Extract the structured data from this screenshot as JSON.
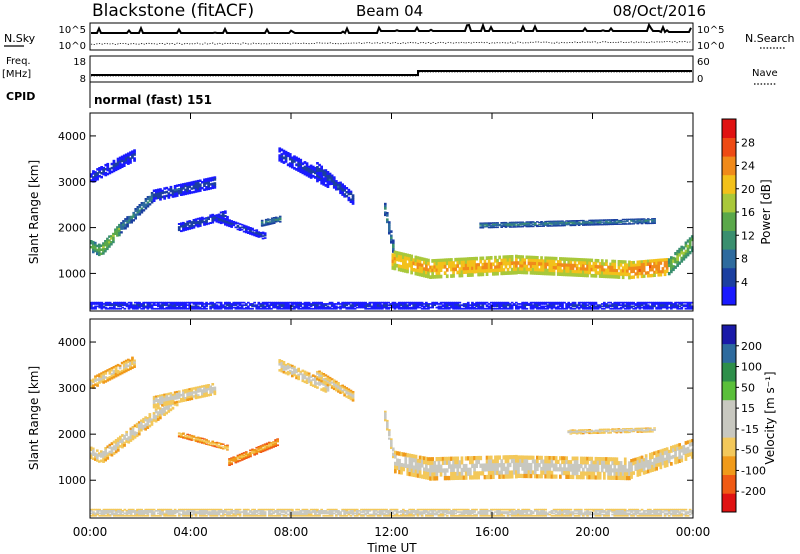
{
  "header": {
    "station": "Blackstone (fitACF)",
    "beam": "Beam 04",
    "date": "08/Oct/2016"
  },
  "panels": {
    "noise": {
      "left_label": "N.Sky",
      "right_label": "N.Search",
      "left_ticks": [
        "10^5",
        "10^0"
      ],
      "right_ticks": [
        "10^5",
        "10^0"
      ]
    },
    "freq": {
      "left_label_1": "Freq.",
      "left_label_2": "[MHz]",
      "right_label": "Nave",
      "left_ticks": [
        "18",
        "8"
      ],
      "right_ticks": [
        "60",
        "0"
      ]
    },
    "cpid": {
      "left_label": "CPID",
      "text": "normal (fast) 151"
    }
  },
  "colors": {
    "power_scale": [
      "#1a1aff",
      "#1b3fa0",
      "#2e6b9e",
      "#3a8f6f",
      "#5aa84a",
      "#a9c83a",
      "#f3c11a",
      "#f08a1a",
      "#ee4a14",
      "#e01212"
    ],
    "velocity_scale": [
      "#e01212",
      "#f05a14",
      "#f09a1a",
      "#f3c85a",
      "#c8c8c0",
      "#c8c8c0",
      "#5abf3a",
      "#2e8f4a",
      "#2e6b9e",
      "#1a1aa8"
    ]
  },
  "chart_data": [
    {
      "type": "heatmap",
      "title": "",
      "xlabel": "Time UT",
      "ylabel": "Slant Range [km]",
      "x_ticks": [
        "00:00",
        "04:00",
        "08:00",
        "12:00",
        "16:00",
        "20:00",
        "00:00"
      ],
      "xlim": [
        0,
        24
      ],
      "y_ticks": [
        "1000",
        "2000",
        "3000",
        "4000"
      ],
      "ylim": [
        180,
        4500
      ],
      "colorbar_label": "Power [dB]",
      "colorbar_ticks": [
        "4",
        "8",
        "12",
        "16",
        "20",
        "24",
        "28"
      ],
      "colorbar_range": [
        0,
        30
      ],
      "bands": [
        {
          "t0": 0.0,
          "t1": 0.4,
          "r0": 1600,
          "r1": 1500,
          "w": 260,
          "value": 14
        },
        {
          "t0": 0.4,
          "t1": 1.2,
          "r0": 1500,
          "r1": 2000,
          "w": 260,
          "value": 16
        },
        {
          "t0": 1.2,
          "t1": 2.5,
          "r0": 2000,
          "r1": 2700,
          "w": 240,
          "value": 10
        },
        {
          "t0": 0.0,
          "t1": 1.8,
          "r0": 3100,
          "r1": 3600,
          "w": 260,
          "value": 5
        },
        {
          "t0": 2.5,
          "t1": 5.0,
          "r0": 2700,
          "r1": 3000,
          "w": 260,
          "value": 6
        },
        {
          "t0": 3.5,
          "t1": 5.5,
          "r0": 2000,
          "r1": 2300,
          "w": 200,
          "value": 6
        },
        {
          "t0": 5.0,
          "t1": 7.0,
          "r0": 2200,
          "r1": 1800,
          "w": 160,
          "value": 5
        },
        {
          "t0": 6.8,
          "t1": 7.6,
          "r0": 2100,
          "r1": 2200,
          "w": 140,
          "value": 10
        },
        {
          "t0": 7.5,
          "t1": 9.5,
          "r0": 3600,
          "r1": 3000,
          "w": 300,
          "value": 5
        },
        {
          "t0": 9.0,
          "t1": 10.5,
          "r0": 3300,
          "r1": 2600,
          "w": 260,
          "value": 6
        },
        {
          "t0": 11.7,
          "t1": 12.1,
          "r0": 2400,
          "r1": 1400,
          "w": 280,
          "value": 10
        },
        {
          "t0": 12.0,
          "t1": 13.5,
          "r0": 1300,
          "r1": 1100,
          "w": 420,
          "value": 22
        },
        {
          "t0": 13.5,
          "t1": 17.0,
          "r0": 1100,
          "r1": 1200,
          "w": 420,
          "value": 22
        },
        {
          "t0": 17.0,
          "t1": 21.5,
          "r0": 1200,
          "r1": 1080,
          "w": 400,
          "value": 22
        },
        {
          "t0": 21.5,
          "t1": 23.0,
          "r0": 1080,
          "r1": 1150,
          "w": 380,
          "value": 24
        },
        {
          "t0": 23.0,
          "t1": 24.0,
          "r0": 1150,
          "r1": 1700,
          "w": 360,
          "value": 16
        },
        {
          "t0": 15.5,
          "t1": 22.5,
          "r0": 2050,
          "r1": 2150,
          "w": 120,
          "value": 10
        },
        {
          "t0": 0.0,
          "t1": 24.0,
          "r0": 300,
          "r1": 300,
          "w": 160,
          "value": 4
        }
      ]
    },
    {
      "type": "heatmap",
      "title": "",
      "xlabel": "Time UT",
      "ylabel": "Slant Range [km]",
      "x_ticks": [
        "00:00",
        "04:00",
        "08:00",
        "12:00",
        "16:00",
        "20:00",
        "00:00"
      ],
      "xlim": [
        0,
        24
      ],
      "y_ticks": [
        "1000",
        "2000",
        "3000",
        "4000"
      ],
      "ylim": [
        180,
        4500
      ],
      "colorbar_label": "Velocity [m s⁻¹]",
      "colorbar_ticks": [
        "-200",
        "-100",
        "-50",
        "-15",
        "15",
        "50",
        "100",
        "200"
      ],
      "colorbar_range": [
        -250,
        250
      ],
      "bands": [
        {
          "t0": 0.0,
          "t1": 0.4,
          "r0": 1600,
          "r1": 1500,
          "w": 260,
          "value": 0
        },
        {
          "t0": 0.4,
          "t1": 3.5,
          "r0": 1500,
          "r1": 2800,
          "w": 300,
          "value": 0
        },
        {
          "t0": 0.0,
          "t1": 1.8,
          "r0": 3100,
          "r1": 3600,
          "w": 260,
          "value": -30
        },
        {
          "t0": 2.5,
          "t1": 5.0,
          "r0": 2700,
          "r1": 3000,
          "w": 260,
          "value": 0
        },
        {
          "t0": 3.5,
          "t1": 5.5,
          "r0": 2000,
          "r1": 1700,
          "w": 120,
          "value": -60
        },
        {
          "t0": 5.5,
          "t1": 7.5,
          "r0": 1400,
          "r1": 1850,
          "w": 160,
          "value": -80
        },
        {
          "t0": 7.5,
          "t1": 9.5,
          "r0": 3500,
          "r1": 3000,
          "w": 260,
          "value": 0
        },
        {
          "t0": 9.0,
          "t1": 10.5,
          "r0": 3300,
          "r1": 2800,
          "w": 220,
          "value": -20
        },
        {
          "t0": 11.7,
          "t1": 12.1,
          "r0": 2400,
          "r1": 1400,
          "w": 220,
          "value": 30
        },
        {
          "t0": 12.1,
          "t1": 13.5,
          "r0": 1400,
          "r1": 1250,
          "w": 480,
          "value": 0
        },
        {
          "t0": 13.5,
          "t1": 17.0,
          "r0": 1250,
          "r1": 1300,
          "w": 500,
          "value": 0
        },
        {
          "t0": 17.0,
          "t1": 21.5,
          "r0": 1300,
          "r1": 1250,
          "w": 480,
          "value": 0
        },
        {
          "t0": 21.5,
          "t1": 24.0,
          "r0": 1250,
          "r1": 1700,
          "w": 420,
          "value": 0
        },
        {
          "t0": 19.0,
          "t1": 22.5,
          "r0": 2050,
          "r1": 2100,
          "w": 100,
          "value": 0
        },
        {
          "t0": 0.0,
          "t1": 24.0,
          "r0": 300,
          "r1": 300,
          "w": 160,
          "value": 20
        }
      ]
    }
  ]
}
